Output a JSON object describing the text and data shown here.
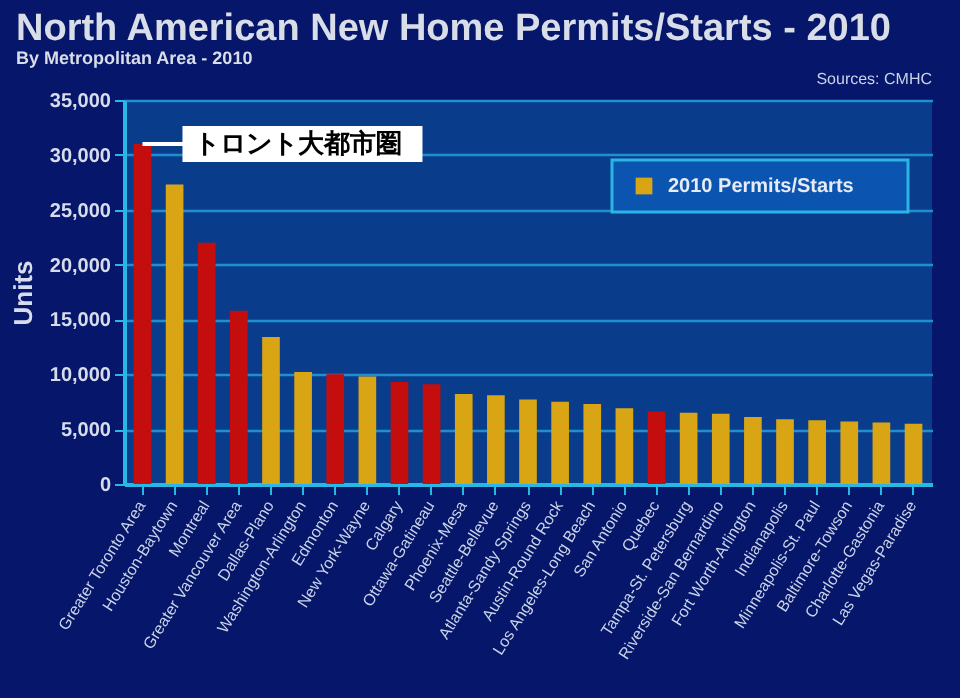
{
  "chart_data": {
    "type": "bar",
    "title": "North American New Home Permits/Starts - 2010",
    "subtitle": "By Metropolitan Area - 2010",
    "ylabel": "Units",
    "categories": [
      "Greater Toronto Area",
      "Houston-Baytown",
      "Montreal",
      "Greater Vancouver Area",
      "Dallas-Plano",
      "Washington-Arlington",
      "Edmonton",
      "New York-Wayne",
      "Calgary",
      "Ottawa-Gatineau",
      "Phoenix-Mesa",
      "Seattle-Bellevue",
      "Atlanta-Sandy Springs",
      "Austin-Round Rock",
      "Los Angeles-Long Beach",
      "San Antonio",
      "Quebec",
      "Tampa-St. Petersburg",
      "Riverside-San Bernardino",
      "Fort Worth-Arlington",
      "Indianapolis",
      "Minneapolis-St. Paul",
      "Baltimore-Towson",
      "Charlotte-Gastonia",
      "Las Vegas-Paradise"
    ],
    "series": [
      {
        "name": "2010 Permits/Starts",
        "color": "#d9a514",
        "colors": [
          "#c40d0d",
          "#d9a514",
          "#c40d0d",
          "#c40d0d",
          "#d9a514",
          "#d9a514",
          "#c40d0d",
          "#d9a514",
          "#c40d0d",
          "#c40d0d",
          "#d9a514",
          "#d9a514",
          "#d9a514",
          "#d9a514",
          "#d9a514",
          "#d9a514",
          "#c40d0d",
          "#d9a514",
          "#d9a514",
          "#d9a514",
          "#d9a514",
          "#d9a514",
          "#d9a514",
          "#d9a514",
          "#d9a514"
        ],
        "values": [
          31000,
          27300,
          22000,
          15800,
          13400,
          10200,
          10000,
          9800,
          9300,
          9100,
          8200,
          8100,
          7700,
          7500,
          7300,
          6900,
          6600,
          6500,
          6400,
          6100,
          5900,
          5800,
          5700,
          5600,
          5500
        ]
      }
    ],
    "ylim": [
      0,
      35000
    ],
    "yticks": [
      0,
      {
        "value": 5000,
        "label": "5,000"
      },
      {
        "value": 10000,
        "label": "10,000"
      },
      {
        "value": 15000,
        "label": "15,000"
      },
      {
        "value": 20000,
        "label": "20,000"
      },
      {
        "value": 25000,
        "label": "25,000"
      },
      {
        "value": 30000,
        "label": "30,000"
      },
      {
        "value": 35000,
        "label": "35,000"
      }
    ],
    "grid": "y",
    "legend": "top right",
    "annotations": [
      {
        "text": "トロント大都市圏",
        "x": "Greater Toronto Area",
        "y": 31000
      },
      "Sources: CMHC"
    ]
  }
}
